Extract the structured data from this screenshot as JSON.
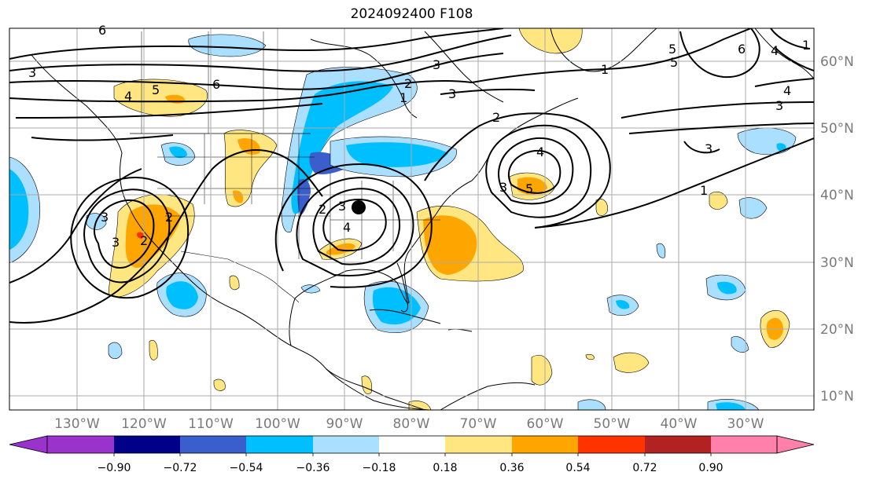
{
  "title": "2024092400 F108",
  "colors": {
    "neg_090": "#9933cc",
    "neg_072": "#000088",
    "neg_054": "#3a5fcd",
    "neg_036": "#00bfff",
    "neg_018": "#aadfff",
    "zero": "#ffffff",
    "pos_018": "#ffe680",
    "pos_036": "#ffa500",
    "pos_054": "#ff3300",
    "pos_072": "#b22222",
    "pos_090": "#ff80aa",
    "coast": "#000000",
    "grid": "#aaaaaa",
    "contour": "#000000"
  },
  "lon_labels": [
    "130°W",
    "120°W",
    "110°W",
    "100°W",
    "90°W",
    "80°W",
    "70°W",
    "60°W",
    "50°W",
    "40°W",
    "30°W"
  ],
  "lat_labels": [
    "60°N",
    "50°N",
    "40°N",
    "30°N",
    "20°N",
    "10°N"
  ],
  "colorbar": {
    "ticks": [
      "−0.90",
      "−0.72",
      "−0.54",
      "−0.36",
      "−0.18",
      "0.18",
      "0.36",
      "0.54",
      "0.72",
      "0.90"
    ]
  },
  "contour_labels": [
    "6",
    "4",
    "5",
    "6",
    "3",
    "2",
    "1",
    "1",
    "3",
    "4",
    "5",
    "6",
    "2",
    "3",
    "4",
    "3",
    "3",
    "1",
    "2",
    "3",
    "4",
    "5",
    "2",
    "3",
    "4",
    "1",
    "2",
    "3",
    "3",
    "5"
  ]
}
